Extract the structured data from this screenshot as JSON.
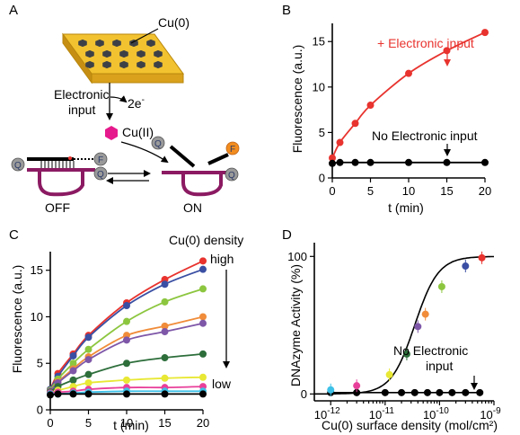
{
  "panels": {
    "A": "A",
    "B": "B",
    "C": "C",
    "D": "D"
  },
  "schematic": {
    "cu0": "Cu(0)",
    "electronic_input": [
      "Electronic",
      "input"
    ],
    "electrons": "2e",
    "electrons_sup": "-",
    "cu2": "Cu(II)",
    "off": "OFF",
    "on": "ON",
    "q": "Q",
    "f": "F",
    "colors": {
      "chip": "#f2c230",
      "hex": "#3d4147",
      "cu2": "#e6198c",
      "dna": "#8b1a62",
      "fluor": "#f28c1e",
      "quencher": "#9a9a9a"
    }
  },
  "chart_data": [
    {
      "panel": "B",
      "type": "line",
      "xlabel": "t (min)",
      "ylabel": "Fluorescence (a.u.)",
      "xlim": [
        0,
        20
      ],
      "ylim": [
        0,
        17
      ],
      "xticks": [
        0,
        5,
        10,
        15,
        20
      ],
      "yticks": [
        0,
        5,
        10,
        15
      ],
      "series": [
        {
          "name": "+ Electronic input",
          "color": "#e8332e",
          "x": [
            0,
            1,
            3,
            5,
            10,
            15,
            20
          ],
          "y": [
            2.2,
            3.9,
            6.0,
            8.0,
            11.5,
            14.0,
            16.0
          ]
        },
        {
          "name": "No Electronic input",
          "color": "#000000",
          "x": [
            0,
            1,
            3,
            5,
            10,
            15,
            20
          ],
          "y": [
            1.6,
            1.7,
            1.7,
            1.7,
            1.7,
            1.7,
            1.7
          ]
        }
      ]
    },
    {
      "panel": "C",
      "type": "line",
      "xlabel": "t (min)",
      "ylabel": "Fluorescence (a.u.)",
      "xlim": [
        0,
        20
      ],
      "ylim": [
        0,
        17
      ],
      "xticks": [
        0,
        5,
        10,
        15,
        20
      ],
      "yticks": [
        0,
        5,
        10,
        15
      ],
      "legend_title": "Cu(0) density",
      "legend_high": "high",
      "legend_low": "low",
      "x": [
        0,
        1,
        3,
        5,
        10,
        15,
        20
      ],
      "series": [
        {
          "color": "#e8332e",
          "y": [
            2.2,
            3.9,
            6.0,
            8.0,
            11.5,
            14.0,
            16.0
          ]
        },
        {
          "color": "#3a4fa3",
          "y": [
            2.2,
            3.6,
            5.8,
            7.8,
            11.2,
            13.5,
            15.1
          ]
        },
        {
          "color": "#8cc63f",
          "y": [
            2.1,
            3.3,
            5.0,
            6.5,
            9.5,
            11.6,
            13.0
          ]
        },
        {
          "color": "#f08c3a",
          "y": [
            2.0,
            3.0,
            4.4,
            5.7,
            8.0,
            9.0,
            10.0
          ]
        },
        {
          "color": "#7e57a8",
          "y": [
            2.0,
            2.9,
            4.2,
            5.4,
            7.5,
            8.4,
            9.3
          ]
        },
        {
          "color": "#2d6e3b",
          "y": [
            1.9,
            2.5,
            3.2,
            3.8,
            5.0,
            5.6,
            6.0
          ]
        },
        {
          "color": "#e8e835",
          "y": [
            1.8,
            2.1,
            2.5,
            2.9,
            3.2,
            3.4,
            3.5
          ]
        },
        {
          "color": "#e8409a",
          "y": [
            1.8,
            1.9,
            2.0,
            2.2,
            2.4,
            2.4,
            2.5
          ]
        },
        {
          "color": "#3ec1e8",
          "y": [
            1.7,
            1.7,
            1.8,
            1.9,
            2.0,
            2.0,
            2.0
          ]
        },
        {
          "color": "#000000",
          "y": [
            1.6,
            1.7,
            1.7,
            1.7,
            1.7,
            1.7,
            1.7
          ]
        }
      ]
    },
    {
      "panel": "D",
      "type": "scatter",
      "xlabel": "Cu(0) surface density (mol/cm²)",
      "ylabel": "DNAzyme Activity (%)",
      "xscale": "log",
      "xlim": [
        5e-13,
        1e-09
      ],
      "ylim": [
        -5,
        110
      ],
      "xticks": [
        {
          "base": "10",
          "exp": "-12",
          "value": 1e-12
        },
        {
          "base": "10",
          "exp": "-11",
          "value": 1e-11
        },
        {
          "base": "10",
          "exp": "-10",
          "value": 1e-10
        },
        {
          "base": "10",
          "exp": "-9",
          "value": 1e-09
        }
      ],
      "yticks": [
        0,
        100
      ],
      "annotation": [
        "No Electronic",
        "input"
      ],
      "sigmoid": {
        "mid": 3.5e-11,
        "slope": 2.0,
        "top": 100,
        "bottom": 0
      },
      "points": [
        {
          "x": 1e-12,
          "y": 3,
          "color": "#3ec1e8"
        },
        {
          "x": 3e-12,
          "y": 6,
          "color": "#e8409a"
        },
        {
          "x": 1.2e-11,
          "y": 14,
          "color": "#e8e835"
        },
        {
          "x": 2.5e-11,
          "y": 29,
          "color": "#2d6e3b"
        },
        {
          "x": 4e-11,
          "y": 49,
          "color": "#7e57a8"
        },
        {
          "x": 5.5e-11,
          "y": 58,
          "color": "#f08c3a"
        },
        {
          "x": 1.1e-10,
          "y": 78,
          "color": "#8cc63f"
        },
        {
          "x": 3e-10,
          "y": 93,
          "color": "#3a4fa3"
        },
        {
          "x": 6e-10,
          "y": 99,
          "color": "#e8332e"
        }
      ],
      "baseline": {
        "color": "#000000",
        "x": [
          1e-12,
          3e-12,
          1e-11,
          2e-11,
          3.5e-11,
          6e-11,
          1e-10,
          1.7e-10,
          3e-10,
          5.5e-10
        ],
        "y": [
          1,
          1,
          1,
          1,
          1,
          1,
          1,
          1,
          1,
          1
        ]
      }
    }
  ]
}
